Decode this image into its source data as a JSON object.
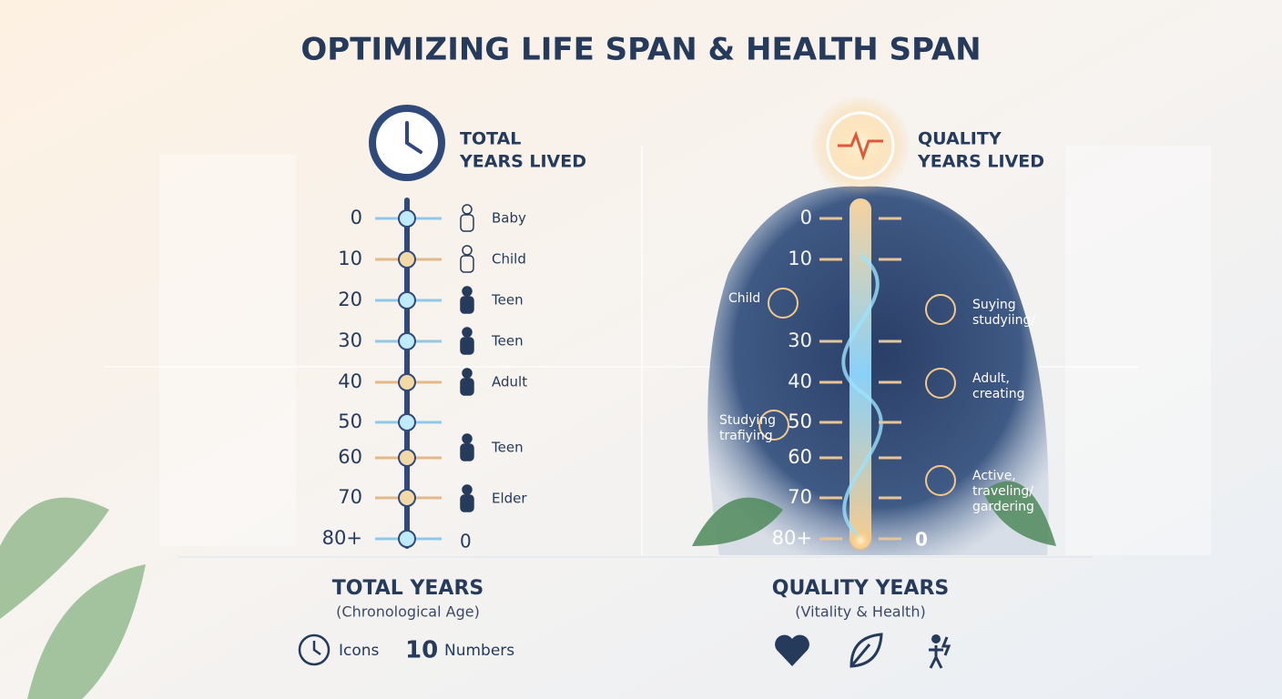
{
  "title": "OPTIMIZING LIFE SPAN & HEALTH SPAN",
  "left": {
    "heading": [
      "TOTAL",
      "YEARS LIVED"
    ],
    "scale": [
      "0",
      "10",
      "20",
      "30",
      "40",
      "50",
      "60",
      "70",
      "80+"
    ],
    "stages": [
      "Baby",
      "Child",
      "Teen",
      "Teen",
      "Adult",
      "Teen",
      "Elder",
      "0"
    ],
    "footer_title": "TOTAL YEARS",
    "footer_subtitle": "(Chronological Age)",
    "legend": [
      "Icons",
      "10",
      "Numbers"
    ]
  },
  "right": {
    "heading": [
      "QUALITY",
      "YEARS LIVED"
    ],
    "scale": [
      "0",
      "10",
      "30",
      "40",
      "50",
      "60",
      "70",
      "80+"
    ],
    "end_label": "0",
    "activities": [
      [
        "Child"
      ],
      [
        "Suying",
        "studyiing/"
      ],
      [
        "Adult,",
        "creating"
      ],
      [
        "Studying",
        "trafiying"
      ],
      [
        "Active,",
        "traveling/",
        "gardering"
      ]
    ],
    "footer_title": "QUALITY YEARS",
    "footer_subtitle": "(Vitality & Health)"
  }
}
